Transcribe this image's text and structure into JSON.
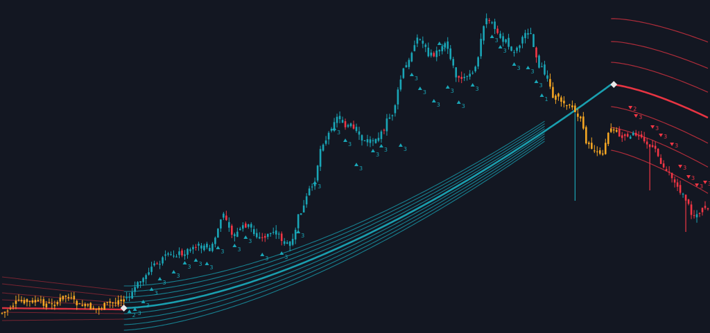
{
  "chart_data": {
    "type": "candlestick",
    "grid": false,
    "legend": "none",
    "x_range": [
      0,
      255
    ],
    "y_range": [
      0,
      481
    ],
    "colors": {
      "background": "#131722",
      "bull": "#1aa6b7",
      "bear": "#f23645",
      "neutral": "#f5a623",
      "band_bull": "#1aa6b7",
      "band_bear": "#f23645",
      "switch_marker": "#e8e8e8"
    },
    "anchors": [
      [
        0,
        452
      ],
      [
        6,
        436
      ],
      [
        12,
        436
      ],
      [
        18,
        440
      ],
      [
        23,
        428
      ],
      [
        28,
        441
      ],
      [
        34,
        446
      ],
      [
        39,
        438
      ],
      [
        44,
        432
      ],
      [
        45,
        430
      ],
      [
        50,
        408
      ],
      [
        55,
        384
      ],
      [
        60,
        370
      ],
      [
        65,
        365
      ],
      [
        70,
        355
      ],
      [
        75,
        360
      ],
      [
        80,
        312
      ],
      [
        84,
        340
      ],
      [
        88,
        325
      ],
      [
        93,
        345
      ],
      [
        98,
        335
      ],
      [
        104,
        355
      ],
      [
        108,
        305
      ],
      [
        112,
        270
      ],
      [
        116,
        205
      ],
      [
        121,
        170
      ],
      [
        126,
        185
      ],
      [
        131,
        205
      ],
      [
        136,
        198
      ],
      [
        140,
        170
      ],
      [
        146,
        95
      ],
      [
        150,
        55
      ],
      [
        155,
        80
      ],
      [
        160,
        65
      ],
      [
        165,
        115
      ],
      [
        170,
        108
      ],
      [
        175,
        25
      ],
      [
        180,
        55
      ],
      [
        185,
        72
      ],
      [
        190,
        45
      ],
      [
        195,
        100
      ],
      [
        200,
        142
      ],
      [
        205,
        150
      ],
      [
        208,
        168
      ],
      [
        212,
        210
      ],
      [
        216,
        225
      ],
      [
        220,
        183
      ],
      [
        225,
        200
      ],
      [
        230,
        192
      ],
      [
        235,
        215
      ],
      [
        240,
        245
      ],
      [
        245,
        275
      ],
      [
        250,
        310
      ],
      [
        255,
        300
      ]
    ],
    "neutral_ranges": [
      [
        0,
        44
      ],
      [
        198,
        222
      ]
    ],
    "bull_range": [
      45,
      197
    ],
    "bear_range": [
      223,
      255
    ],
    "outliers": [
      {
        "x": 207,
        "y": 290
      },
      {
        "x": 234,
        "y": 275
      },
      {
        "x": 247,
        "y": 335
      }
    ],
    "baseline_band": {
      "x_start": 0,
      "x_end": 44,
      "y_start": 445,
      "y_end": 447
    },
    "bull_bands": {
      "x_start": 44,
      "x_end": 196,
      "x_peak": 220,
      "y_peak": 122,
      "y_start": 445,
      "y_end": 150,
      "offsets": [
        -32,
        -24,
        -16,
        -8,
        8,
        16,
        24,
        32
      ],
      "end_spread": 15
    },
    "bear_bands": {
      "x_start": 220,
      "x_end": 255,
      "y_start": 122,
      "y_end": 170,
      "offsets": [
        -95,
        -62,
        -32,
        32,
        62,
        95
      ],
      "start_spread": 1.0,
      "end_spread": 1.15
    },
    "left_bear_lines": {
      "x_start": 0,
      "x_end": 44,
      "start_offsets": [
        -45,
        -35,
        -22,
        -12,
        6,
        18
      ],
      "end_offsets": [
        -27,
        -18,
        -9,
        -5,
        6,
        14
      ]
    },
    "switch_markers": [
      {
        "x": 44,
        "y": 445
      },
      {
        "x": 221,
        "y": 122
      }
    ],
    "signals": [
      {
        "x": 46,
        "y": 452,
        "text": "2",
        "dir": "up"
      },
      {
        "x": 48,
        "y": 449,
        "text": "3",
        "dir": "up"
      },
      {
        "x": 51,
        "y": 438,
        "text": "3",
        "dir": "up"
      },
      {
        "x": 54,
        "y": 420,
        "text": "3",
        "dir": "up"
      },
      {
        "x": 57,
        "y": 405,
        "text": "3",
        "dir": "up"
      },
      {
        "x": 62,
        "y": 395,
        "text": "3",
        "dir": "up"
      },
      {
        "x": 66,
        "y": 382,
        "text": "3",
        "dir": "up"
      },
      {
        "x": 70,
        "y": 378,
        "text": "3",
        "dir": "up"
      },
      {
        "x": 74,
        "y": 383,
        "text": "3",
        "dir": "up"
      },
      {
        "x": 78,
        "y": 360,
        "text": "3",
        "dir": "up"
      },
      {
        "x": 84,
        "y": 357,
        "text": "3",
        "dir": "up"
      },
      {
        "x": 88,
        "y": 345,
        "text": "3",
        "dir": "up"
      },
      {
        "x": 94,
        "y": 370,
        "text": "3",
        "dir": "up"
      },
      {
        "x": 101,
        "y": 368,
        "text": "3",
        "dir": "up"
      },
      {
        "x": 107,
        "y": 337,
        "text": "3",
        "dir": "up"
      },
      {
        "x": 113,
        "y": 266,
        "text": "3",
        "dir": "up"
      },
      {
        "x": 120,
        "y": 188,
        "text": "3",
        "dir": "up"
      },
      {
        "x": 124,
        "y": 205,
        "text": "3",
        "dir": "up"
      },
      {
        "x": 128,
        "y": 240,
        "text": "3",
        "dir": "up"
      },
      {
        "x": 134,
        "y": 220,
        "text": "3",
        "dir": "up"
      },
      {
        "x": 137,
        "y": 213,
        "text": "3",
        "dir": "up"
      },
      {
        "x": 144,
        "y": 212,
        "text": "3",
        "dir": "up"
      },
      {
        "x": 148,
        "y": 110,
        "text": "3",
        "dir": "up"
      },
      {
        "x": 151,
        "y": 130,
        "text": "3",
        "dir": "up"
      },
      {
        "x": 156,
        "y": 148,
        "text": "3",
        "dir": "up"
      },
      {
        "x": 158,
        "y": 65,
        "text": "3",
        "dir": "up"
      },
      {
        "x": 161,
        "y": 128,
        "text": "3",
        "dir": "up"
      },
      {
        "x": 165,
        "y": 150,
        "text": "3",
        "dir": "up"
      },
      {
        "x": 170,
        "y": 125,
        "text": "3",
        "dir": "up"
      },
      {
        "x": 177,
        "y": 55,
        "text": "3",
        "dir": "up"
      },
      {
        "x": 180,
        "y": 70,
        "text": "3",
        "dir": "up"
      },
      {
        "x": 185,
        "y": 95,
        "text": "3",
        "dir": "up"
      },
      {
        "x": 190,
        "y": 100,
        "text": "3",
        "dir": "up"
      },
      {
        "x": 193,
        "y": 120,
        "text": "3",
        "dir": "up"
      },
      {
        "x": 195,
        "y": 140,
        "text": "1",
        "dir": "up"
      },
      {
        "x": 227,
        "y": 160,
        "text": "2",
        "dir": "down"
      },
      {
        "x": 229,
        "y": 172,
        "text": "3",
        "dir": "down"
      },
      {
        "x": 235,
        "y": 188,
        "text": "3",
        "dir": "down"
      },
      {
        "x": 238,
        "y": 200,
        "text": "3",
        "dir": "down"
      },
      {
        "x": 242,
        "y": 213,
        "text": "3",
        "dir": "down"
      },
      {
        "x": 245,
        "y": 245,
        "text": "3",
        "dir": "down"
      },
      {
        "x": 248,
        "y": 260,
        "text": "3",
        "dir": "down"
      },
      {
        "x": 251,
        "y": 272,
        "text": "3",
        "dir": "down"
      },
      {
        "x": 254,
        "y": 268,
        "text": "3",
        "dir": "down"
      }
    ]
  }
}
